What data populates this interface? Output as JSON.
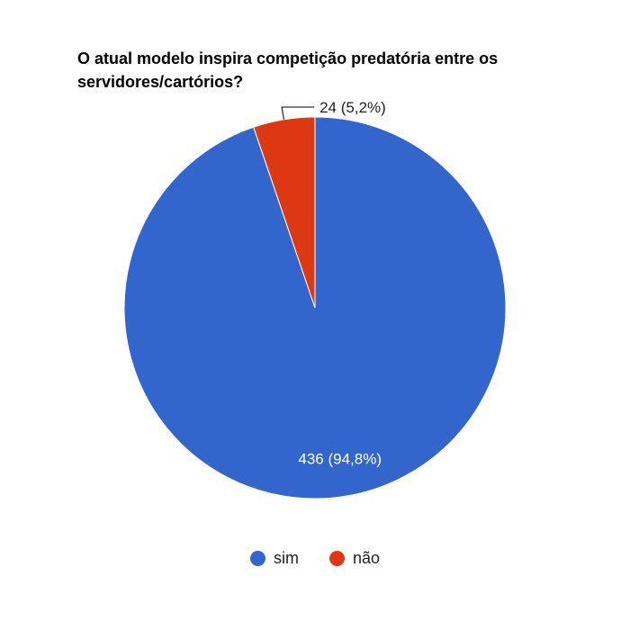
{
  "chart_data": {
    "type": "pie",
    "title": "O atual modelo inspira competição predatória entre os servidores/cartórios?",
    "slices": [
      {
        "name": "sim",
        "value": 436,
        "label": "436 (94,8%)",
        "color": "#3366cc"
      },
      {
        "name": "não",
        "value": 24,
        "label": "24 (5,2%)",
        "color": "#dc3912"
      }
    ],
    "start": "12 o'clock",
    "direction": "clockwise",
    "legend": "bottom"
  }
}
